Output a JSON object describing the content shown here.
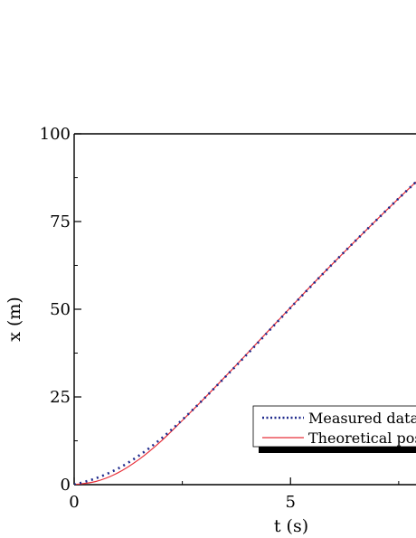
{
  "chart_data": {
    "type": "line",
    "title": "",
    "xlabel": "t (s)",
    "ylabel": "x (m)",
    "xlim": [
      0,
      7.9
    ],
    "ylim": [
      0,
      100
    ],
    "x_ticks": [
      0,
      5
    ],
    "x_tick_labels": [
      "0",
      "5"
    ],
    "y_ticks": [
      0,
      25,
      50,
      75,
      100
    ],
    "y_tick_labels": [
      "0",
      "25",
      "50",
      "75",
      "100"
    ],
    "grid": false,
    "legend_position": "bottom-right",
    "series": [
      {
        "name": "Measured data",
        "style": "dotted",
        "color": "#1f2a8c",
        "x": [
          0,
          0.5,
          1,
          1.5,
          2,
          2.5,
          3,
          3.5,
          4,
          4.5,
          5,
          5.5,
          6,
          6.5,
          7,
          7.5,
          7.9
        ],
        "y": [
          0,
          1.8,
          4.5,
          8.3,
          13,
          18.5,
          24.5,
          30.8,
          37.2,
          43.8,
          50.4,
          56.9,
          63.3,
          69.5,
          75.6,
          81.6,
          86.3
        ]
      },
      {
        "name": "Theoretical position",
        "style": "solid",
        "color": "#e8303a",
        "x": [
          0,
          0.5,
          1,
          1.5,
          2,
          2.5,
          3,
          3.5,
          4,
          4.5,
          5,
          5.5,
          6,
          6.5,
          7,
          7.5,
          7.9
        ],
        "y": [
          0,
          0.9,
          3.3,
          7.2,
          12.3,
          18.3,
          24.5,
          30.9,
          37.4,
          44.0,
          50.5,
          57.0,
          63.3,
          69.5,
          75.6,
          81.6,
          86.3
        ]
      }
    ]
  }
}
